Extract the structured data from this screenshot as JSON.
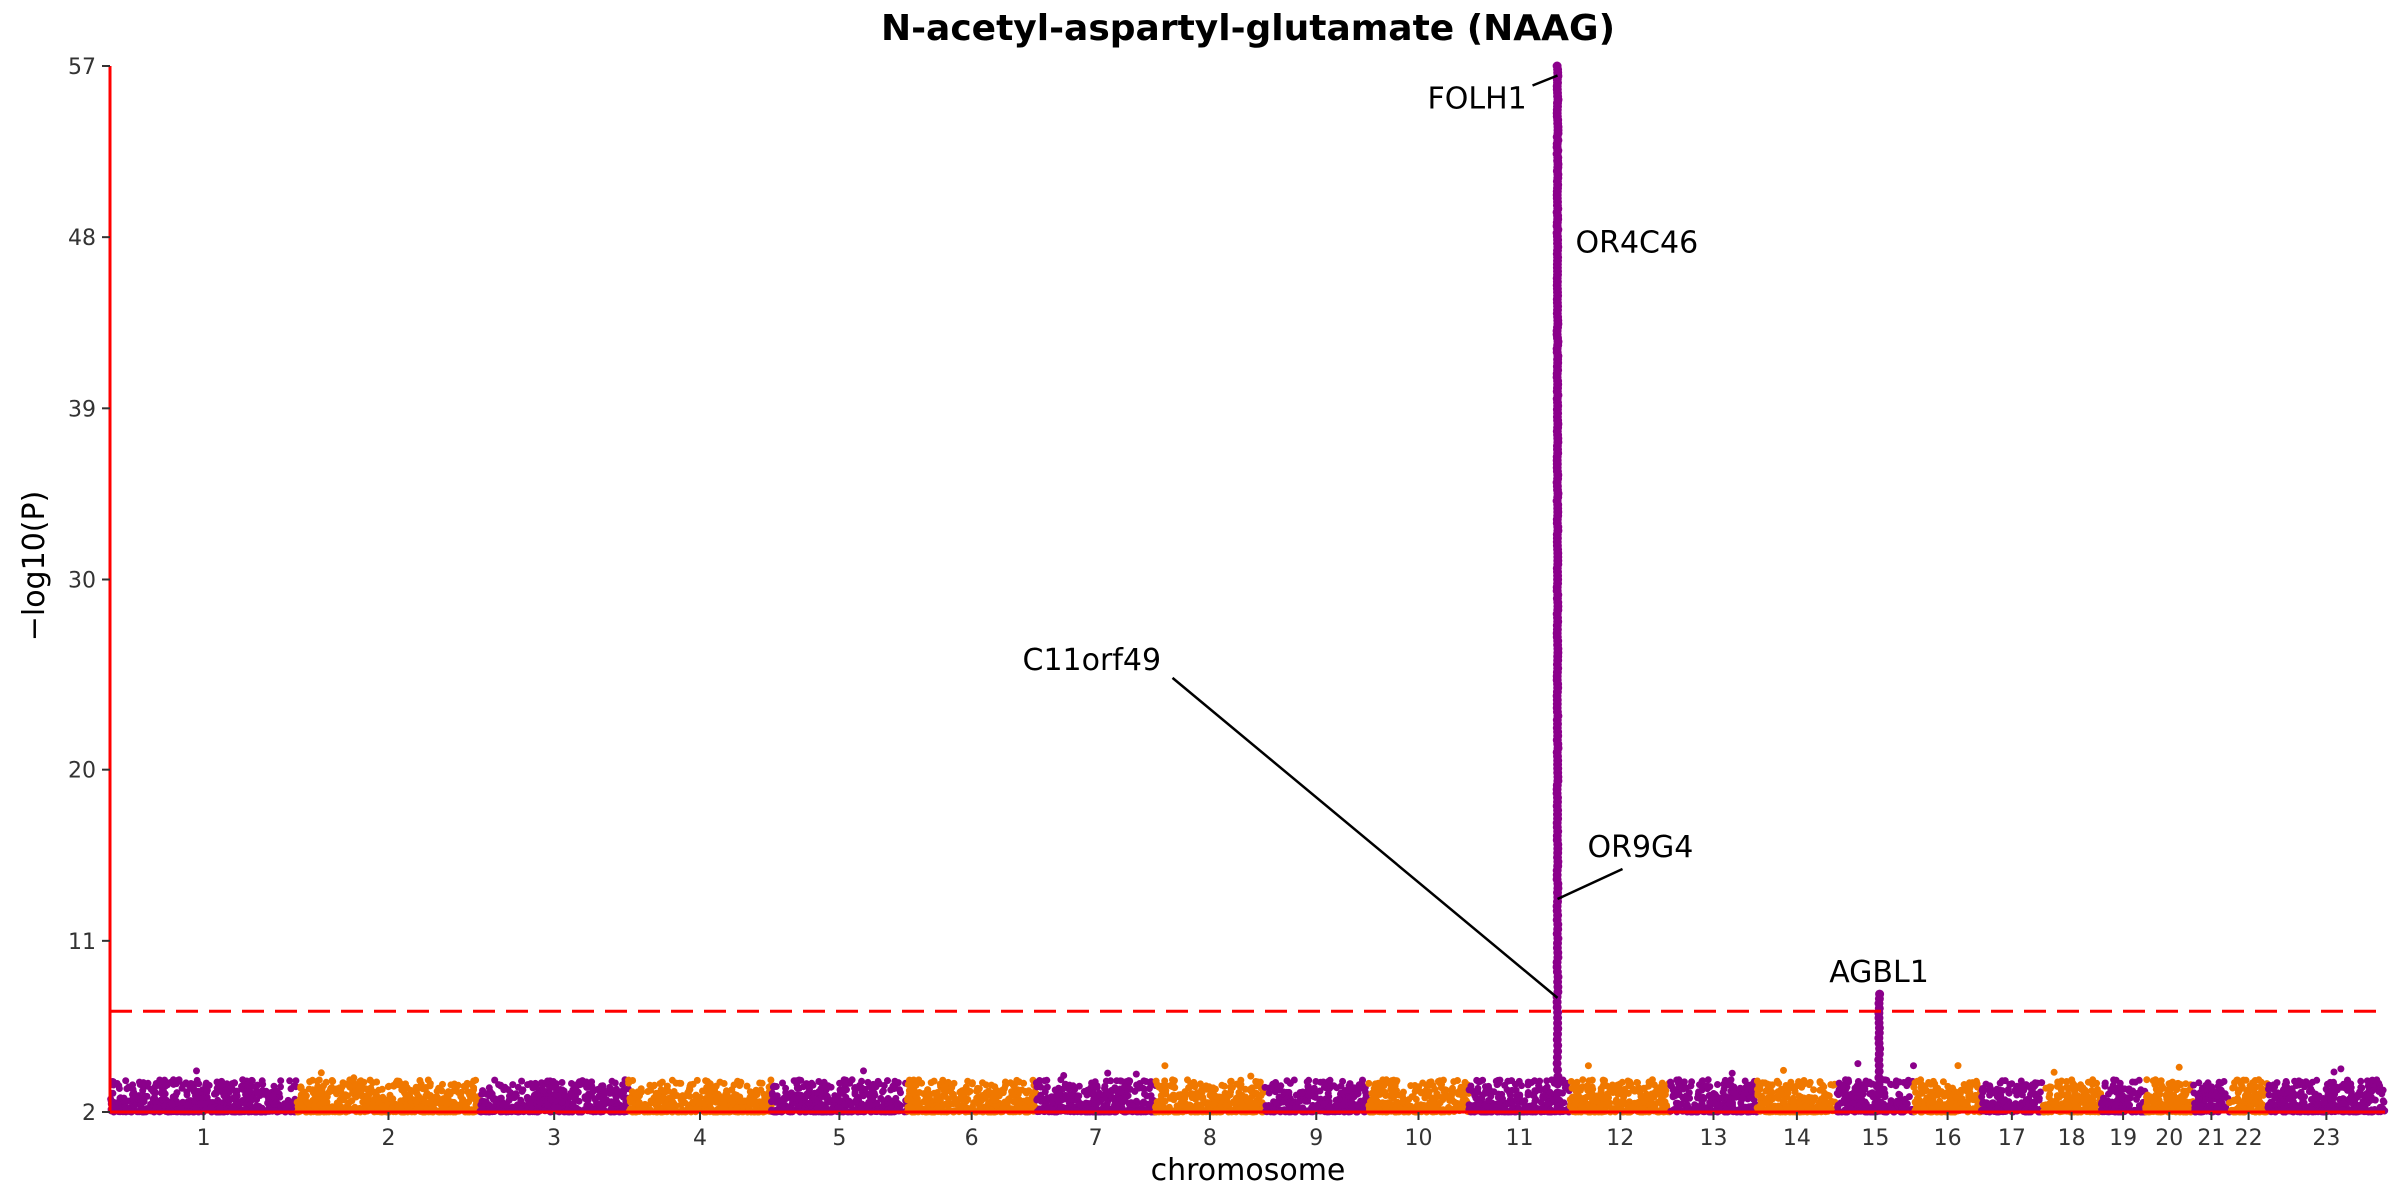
{
  "chart_data": {
    "type": "scatter",
    "title": "N-acetyl-aspartyl-glutamate (NAAG)",
    "xlabel": "chromosome",
    "ylabel": "−log10(P)",
    "ylim": [
      2,
      57
    ],
    "yticks": [
      2,
      11,
      20,
      30,
      39,
      48,
      57
    ],
    "threshold": 7.3,
    "colors": {
      "odd": "#8b008b",
      "even": "#f07800",
      "threshold": "#ff0000",
      "axis": "#ff0000"
    },
    "chromosomes": [
      {
        "label": "1",
        "start": 0,
        "end": 249
      },
      {
        "label": "2",
        "start": 249,
        "end": 492
      },
      {
        "label": "3",
        "start": 492,
        "end": 690
      },
      {
        "label": "4",
        "start": 690,
        "end": 880
      },
      {
        "label": "5",
        "start": 880,
        "end": 1061
      },
      {
        "label": "6",
        "start": 1061,
        "end": 1232
      },
      {
        "label": "7",
        "start": 1232,
        "end": 1391
      },
      {
        "label": "8",
        "start": 1391,
        "end": 1536
      },
      {
        "label": "9",
        "start": 1536,
        "end": 1674
      },
      {
        "label": "10",
        "start": 1674,
        "end": 1808
      },
      {
        "label": "11",
        "start": 1808,
        "end": 1943
      },
      {
        "label": "12",
        "start": 1943,
        "end": 2076
      },
      {
        "label": "13",
        "start": 2076,
        "end": 2191
      },
      {
        "label": "14",
        "start": 2191,
        "end": 2298
      },
      {
        "label": "15",
        "start": 2298,
        "end": 2400
      },
      {
        "label": "16",
        "start": 2400,
        "end": 2490
      },
      {
        "label": "17",
        "start": 2490,
        "end": 2571
      },
      {
        "label": "18",
        "start": 2571,
        "end": 2649
      },
      {
        "label": "19",
        "start": 2649,
        "end": 2708
      },
      {
        "label": "20",
        "start": 2708,
        "end": 2772
      },
      {
        "label": "21",
        "start": 2772,
        "end": 2820
      },
      {
        "label": "22",
        "start": 2820,
        "end": 2871
      },
      {
        "label": "23",
        "start": 2871,
        "end": 3027
      }
    ],
    "peaks": [
      {
        "chrom": "11",
        "x": 1926,
        "top": 57
      },
      {
        "chrom": "15",
        "x": 2354,
        "top": 8.2
      }
    ],
    "annotations": [
      {
        "label": "FOLH1",
        "x": 1926,
        "y": 56.5
      },
      {
        "label": "OR4C46",
        "x": 1926,
        "y": 47.5
      },
      {
        "label": "C11orf49",
        "x": 1926,
        "y": 8.0
      },
      {
        "label": "OR9G4",
        "x": 1926,
        "y": 13.2
      },
      {
        "label": "AGBL1",
        "x": 2354,
        "y": 8.2
      }
    ]
  }
}
